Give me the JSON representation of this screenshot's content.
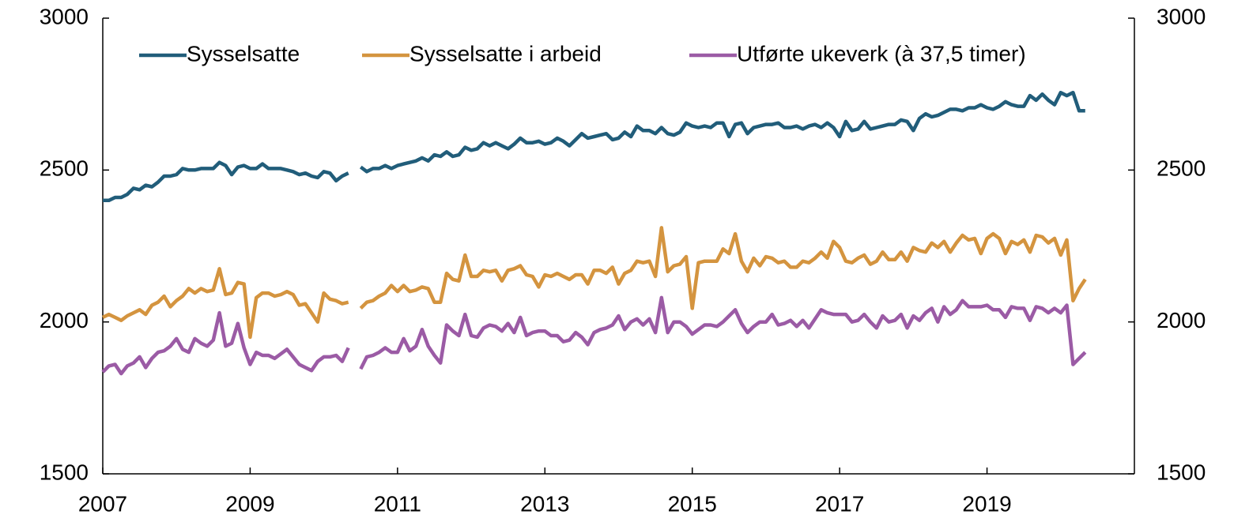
{
  "chart_data": {
    "type": "line",
    "x": [
      2007,
      2007.083,
      2007.167,
      2007.25,
      2007.333,
      2007.417,
      2007.5,
      2007.583,
      2007.667,
      2007.75,
      2007.833,
      2007.917,
      2008,
      2008.083,
      2008.167,
      2008.25,
      2008.333,
      2008.417,
      2008.5,
      2008.583,
      2008.667,
      2008.75,
      2008.833,
      2008.917,
      2009,
      2009.083,
      2009.167,
      2009.25,
      2009.333,
      2009.417,
      2009.5,
      2009.583,
      2009.667,
      2009.75,
      2009.833,
      2009.917,
      2010,
      2010.083,
      2010.167,
      2010.25,
      2010.333,
      2010.417,
      2010.5,
      2010.583,
      2010.667,
      2010.75,
      2010.833,
      2010.917,
      2011,
      2011.083,
      2011.167,
      2011.25,
      2011.333,
      2011.417,
      2011.5,
      2011.583,
      2011.667,
      2011.75,
      2011.833,
      2011.917,
      2012,
      2012.083,
      2012.167,
      2012.25,
      2012.333,
      2012.417,
      2012.5,
      2012.583,
      2012.667,
      2012.75,
      2012.833,
      2012.917,
      2013,
      2013.083,
      2013.167,
      2013.25,
      2013.333,
      2013.417,
      2013.5,
      2013.583,
      2013.667,
      2013.75,
      2013.833,
      2013.917,
      2014,
      2014.083,
      2014.167,
      2014.25,
      2014.333,
      2014.417,
      2014.5,
      2014.583,
      2014.667,
      2014.75,
      2014.833,
      2014.917,
      2015,
      2015.083,
      2015.167,
      2015.25,
      2015.333,
      2015.417,
      2015.5,
      2015.583,
      2015.667,
      2015.75,
      2015.833,
      2015.917,
      2016,
      2016.083,
      2016.167,
      2016.25,
      2016.333,
      2016.417,
      2016.5,
      2016.583,
      2016.667,
      2016.75,
      2016.833,
      2016.917,
      2017,
      2017.083,
      2017.167,
      2017.25,
      2017.333,
      2017.417,
      2017.5,
      2017.583,
      2017.667,
      2017.75,
      2017.833,
      2017.917,
      2018,
      2018.083,
      2018.167,
      2018.25,
      2018.333,
      2018.417,
      2018.5,
      2018.583,
      2018.667,
      2018.75,
      2018.833,
      2018.917,
      2019,
      2019.083,
      2019.167,
      2019.25,
      2019.333,
      2019.417,
      2019.5,
      2019.583,
      2019.667,
      2019.75,
      2019.833,
      2019.917,
      2020,
      2020.083,
      2020.167,
      2020.25,
      2020.333
    ],
    "series": [
      {
        "name": "Sysselsatte",
        "color": "#215d7a",
        "values": [
          2400,
          2400,
          2410,
          2410,
          2420,
          2440,
          2435,
          2450,
          2445,
          2460,
          2480,
          2480,
          2485,
          2505,
          2500,
          2500,
          2505,
          2505,
          2505,
          2525,
          2515,
          2485,
          2510,
          2515,
          2505,
          2505,
          2520,
          2505,
          2505,
          2505,
          2500,
          2495,
          2485,
          2490,
          2480,
          2475,
          2495,
          2490,
          2465,
          2480,
          2490,
          null,
          2510,
          2495,
          2505,
          2505,
          2515,
          2505,
          2515,
          2520,
          2525,
          2530,
          2540,
          2530,
          2550,
          2545,
          2560,
          2545,
          2550,
          2575,
          2565,
          2570,
          2590,
          2580,
          2590,
          2580,
          2570,
          2585,
          2605,
          2590,
          2590,
          2595,
          2585,
          2590,
          2605,
          2595,
          2580,
          2600,
          2620,
          2605,
          2610,
          2615,
          2620,
          2600,
          2605,
          2625,
          2610,
          2645,
          2630,
          2630,
          2620,
          2640,
          2620,
          2615,
          2625,
          2655,
          2645,
          2640,
          2645,
          2640,
          2655,
          2655,
          2610,
          2650,
          2655,
          2620,
          2640,
          2645,
          2650,
          2650,
          2655,
          2640,
          2640,
          2645,
          2635,
          2645,
          2650,
          2640,
          2655,
          2640,
          2610,
          2660,
          2630,
          2635,
          2660,
          2635,
          2640,
          2645,
          2650,
          2650,
          2665,
          2660,
          2630,
          2670,
          2685,
          2675,
          2680,
          2690,
          2700,
          2700,
          2695,
          2705,
          2705,
          2715,
          2705,
          2700,
          2710,
          2725,
          2715,
          2710,
          2710,
          2745,
          2730,
          2750,
          2730,
          2715,
          2755,
          2745,
          2755,
          2695,
          2695
        ]
      },
      {
        "name": "Sysselsatte i arbeid",
        "color": "#d4943f",
        "values": [
          2015,
          2025,
          2015,
          2005,
          2020,
          2030,
          2040,
          2025,
          2055,
          2065,
          2085,
          2050,
          2070,
          2085,
          2110,
          2095,
          2110,
          2100,
          2105,
          2175,
          2090,
          2095,
          2130,
          2125,
          1950,
          2080,
          2095,
          2095,
          2085,
          2090,
          2100,
          2090,
          2055,
          2060,
          2030,
          2000,
          2095,
          2075,
          2070,
          2060,
          2065,
          null,
          2045,
          2065,
          2070,
          2085,
          2095,
          2120,
          2100,
          2120,
          2100,
          2105,
          2115,
          2110,
          2065,
          2065,
          2160,
          2140,
          2135,
          2220,
          2150,
          2150,
          2170,
          2165,
          2170,
          2135,
          2170,
          2175,
          2185,
          2155,
          2150,
          2115,
          2155,
          2150,
          2160,
          2150,
          2140,
          2155,
          2155,
          2125,
          2170,
          2170,
          2160,
          2180,
          2125,
          2160,
          2170,
          2200,
          2195,
          2200,
          2150,
          2310,
          2165,
          2185,
          2190,
          2215,
          2045,
          2195,
          2200,
          2200,
          2200,
          2240,
          2225,
          2290,
          2200,
          2165,
          2210,
          2185,
          2215,
          2210,
          2195,
          2200,
          2180,
          2180,
          2200,
          2195,
          2210,
          2230,
          2210,
          2265,
          2245,
          2200,
          2195,
          2210,
          2220,
          2190,
          2200,
          2230,
          2205,
          2205,
          2230,
          2200,
          2245,
          2235,
          2230,
          2260,
          2245,
          2265,
          2230,
          2260,
          2285,
          2270,
          2275,
          2225,
          2275,
          2290,
          2275,
          2225,
          2265,
          2255,
          2270,
          2230,
          2285,
          2280,
          2260,
          2275,
          2220,
          2270,
          2070,
          2110,
          2140
        ]
      },
      {
        "name": "Utførte ukeverk (à 37,5 timer)",
        "color": "#9b5ba5",
        "values": [
          1835,
          1855,
          1860,
          1830,
          1855,
          1865,
          1885,
          1850,
          1880,
          1900,
          1905,
          1920,
          1945,
          1910,
          1900,
          1945,
          1930,
          1920,
          1940,
          2030,
          1920,
          1930,
          1995,
          1915,
          1860,
          1900,
          1890,
          1890,
          1880,
          1895,
          1910,
          1885,
          1860,
          1850,
          1840,
          1870,
          1885,
          1885,
          1890,
          1870,
          1915,
          null,
          1845,
          1885,
          1890,
          1900,
          1915,
          1900,
          1900,
          1945,
          1905,
          1920,
          1975,
          1920,
          1890,
          1865,
          1990,
          1970,
          1955,
          2025,
          1955,
          1950,
          1980,
          1990,
          1985,
          1970,
          1995,
          1965,
          2015,
          1955,
          1965,
          1970,
          1970,
          1955,
          1955,
          1935,
          1940,
          1965,
          1950,
          1925,
          1965,
          1975,
          1980,
          1990,
          2020,
          1975,
          2000,
          2010,
          1990,
          2010,
          1965,
          2080,
          1965,
          2000,
          2000,
          1985,
          1960,
          1975,
          1990,
          1990,
          1985,
          2000,
          2020,
          2040,
          1995,
          1965,
          1985,
          2000,
          2000,
          2025,
          1990,
          1995,
          2005,
          1985,
          2005,
          1980,
          2010,
          2040,
          2030,
          2025,
          2025,
          2025,
          2000,
          2005,
          2025,
          2000,
          1980,
          2020,
          2000,
          2005,
          2025,
          1980,
          2020,
          2005,
          2030,
          2045,
          2000,
          2050,
          2025,
          2040,
          2070,
          2050,
          2050,
          2050,
          2055,
          2040,
          2040,
          2015,
          2050,
          2045,
          2045,
          2005,
          2050,
          2045,
          2030,
          2045,
          2030,
          2055,
          1860,
          1880,
          1900
        ]
      }
    ],
    "xlim": [
      2007,
      2021
    ],
    "xticks": [
      2007,
      2009,
      2011,
      2013,
      2015,
      2017,
      2019
    ],
    "ylim": [
      1500,
      3000
    ],
    "yticks": [
      1500,
      2000,
      2500,
      3000
    ],
    "y2lim": [
      1500,
      3000
    ],
    "y2ticks": [
      1500,
      2000,
      2500,
      3000
    ],
    "grid": false,
    "legend": "top"
  }
}
